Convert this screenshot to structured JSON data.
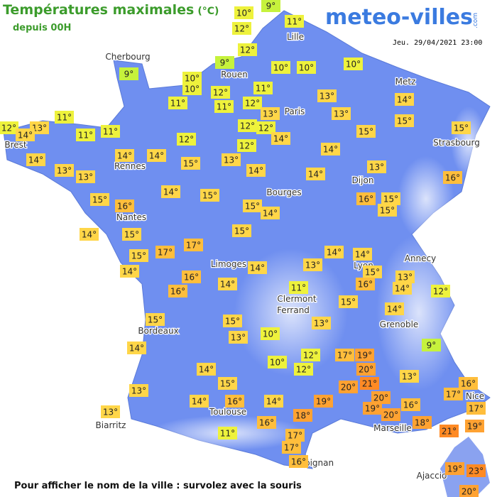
{
  "header": {
    "title": "Températures maximales",
    "unit": "(°C)",
    "subtitle": "depuis 00H",
    "logo": "meteo-villes",
    "logo_suffix": ".com",
    "datetime": "Jeu. 29/04/2021 23:00"
  },
  "footer": "Pour afficher le nom de la ville : survolez avec la souris",
  "cities": [
    "Cherbourg",
    "Rouen",
    "Lille",
    "Paris",
    "Metz",
    "Strasbourg",
    "Brest",
    "Rennes",
    "Nantes",
    "Bourges",
    "Dijon",
    "Limoges",
    "Lyon",
    "Annecy",
    "Clermont",
    "Ferrand",
    "Grenoble",
    "Bordeaux",
    "Toulouse",
    "Biarritz",
    "Marseille",
    "Nice",
    "Ajaccio",
    "Perpignan"
  ],
  "readings": [
    "10°",
    "9°",
    "11°",
    "12°",
    "12°",
    "9°",
    "10°",
    "10°",
    "10°",
    "9°",
    "10°",
    "10°",
    "12°",
    "11°",
    "11°",
    "11°",
    "12°",
    "13°",
    "14°",
    "13°",
    "13°",
    "15°",
    "11°",
    "12°",
    "13°",
    "14°",
    "11°",
    "11°",
    "12°",
    "12°",
    "14°",
    "15°",
    "15°",
    "12°",
    "12°",
    "14°",
    "14°",
    "14°",
    "14°",
    "15°",
    "13°",
    "13°",
    "13°",
    "14°",
    "13°",
    "14°",
    "16°",
    "14°",
    "15°",
    "15°",
    "16°",
    "16°",
    "15°",
    "15°",
    "15°",
    "14°",
    "14°",
    "15°",
    "15°",
    "17°",
    "17°",
    "14°",
    "14°",
    "15°",
    "14°",
    "14°",
    "13°",
    "15°",
    "13°",
    "16°",
    "16°",
    "14°",
    "11°",
    "16°",
    "14°",
    "12°",
    "15°",
    "14°",
    "15°",
    "15°",
    "13°",
    "10°",
    "13°",
    "9°",
    "14°",
    "17°",
    "19°",
    "12°",
    "10°",
    "12°",
    "20°",
    "14°",
    "13°",
    "21°",
    "20°",
    "15°",
    "16°",
    "13°",
    "17°",
    "14°",
    "16°",
    "14°",
    "19°",
    "20°",
    "19°",
    "16°",
    "17°",
    "20°",
    "13°",
    "18°",
    "16°",
    "18°",
    "21°",
    "19°",
    "11°",
    "17°",
    "17°",
    "16°",
    "19°",
    "23°",
    "20°"
  ]
}
